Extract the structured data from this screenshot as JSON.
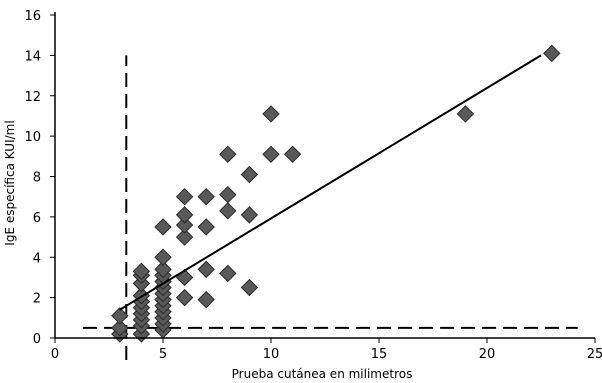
{
  "chart_data": {
    "type": "scatter",
    "title": "",
    "xlabel": "Prueba cutánea en milimetros",
    "ylabel": "IgE específica KUI/ml",
    "xlim": [
      0,
      25
    ],
    "ylim": [
      0,
      16
    ],
    "x_ticks": [
      "0",
      "5",
      "10",
      "15",
      "20",
      "25"
    ],
    "y_ticks": [
      "0",
      "2",
      "4",
      "6",
      "8",
      "10",
      "12",
      "14",
      "16"
    ],
    "grid": false,
    "legend": "none",
    "marker": "diamond",
    "marker_color": "#595959",
    "points": [
      {
        "x": 3,
        "y": 0.2
      },
      {
        "x": 3,
        "y": 0.5
      },
      {
        "x": 3,
        "y": 1.1
      },
      {
        "x": 4,
        "y": 0.2
      },
      {
        "x": 4,
        "y": 0.6
      },
      {
        "x": 4,
        "y": 0.9
      },
      {
        "x": 4,
        "y": 1.2
      },
      {
        "x": 4,
        "y": 1.5
      },
      {
        "x": 4,
        "y": 1.8
      },
      {
        "x": 4,
        "y": 2.1
      },
      {
        "x": 4,
        "y": 2.7
      },
      {
        "x": 4,
        "y": 3.1
      },
      {
        "x": 4,
        "y": 3.3
      },
      {
        "x": 5,
        "y": 0.4
      },
      {
        "x": 5,
        "y": 0.7
      },
      {
        "x": 5,
        "y": 1.0
      },
      {
        "x": 5,
        "y": 1.3
      },
      {
        "x": 5,
        "y": 1.6
      },
      {
        "x": 5,
        "y": 1.9
      },
      {
        "x": 5,
        "y": 2.2
      },
      {
        "x": 5,
        "y": 2.5
      },
      {
        "x": 5,
        "y": 2.8
      },
      {
        "x": 5,
        "y": 3.1
      },
      {
        "x": 5,
        "y": 3.4
      },
      {
        "x": 5,
        "y": 4.0
      },
      {
        "x": 5,
        "y": 5.5
      },
      {
        "x": 6,
        "y": 2.0
      },
      {
        "x": 6,
        "y": 3.0
      },
      {
        "x": 6,
        "y": 5.0
      },
      {
        "x": 6,
        "y": 5.6
      },
      {
        "x": 6,
        "y": 6.1
      },
      {
        "x": 6,
        "y": 7.0
      },
      {
        "x": 7,
        "y": 1.9
      },
      {
        "x": 7,
        "y": 3.4
      },
      {
        "x": 7,
        "y": 5.5
      },
      {
        "x": 7,
        "y": 7.0
      },
      {
        "x": 8,
        "y": 3.2
      },
      {
        "x": 8,
        "y": 6.3
      },
      {
        "x": 8,
        "y": 7.1
      },
      {
        "x": 8,
        "y": 9.1
      },
      {
        "x": 9,
        "y": 2.5
      },
      {
        "x": 9,
        "y": 6.1
      },
      {
        "x": 9,
        "y": 8.1
      },
      {
        "x": 10,
        "y": 9.1
      },
      {
        "x": 10,
        "y": 11.1
      },
      {
        "x": 11,
        "y": 9.1
      },
      {
        "x": 19,
        "y": 11.1
      },
      {
        "x": 23,
        "y": 14.1
      }
    ],
    "trendline": {
      "x1": 3.0,
      "y1": 1.4,
      "x2": 22.5,
      "y2": 14.0
    },
    "reference_lines": [
      {
        "orientation": "vertical",
        "x": 3.3,
        "y_from": 0,
        "y_to": 14,
        "style": "dashed"
      },
      {
        "orientation": "horizontal",
        "y": 0.5,
        "x_from": 1.3,
        "x_to": 24.2,
        "style": "dashed"
      }
    ]
  }
}
